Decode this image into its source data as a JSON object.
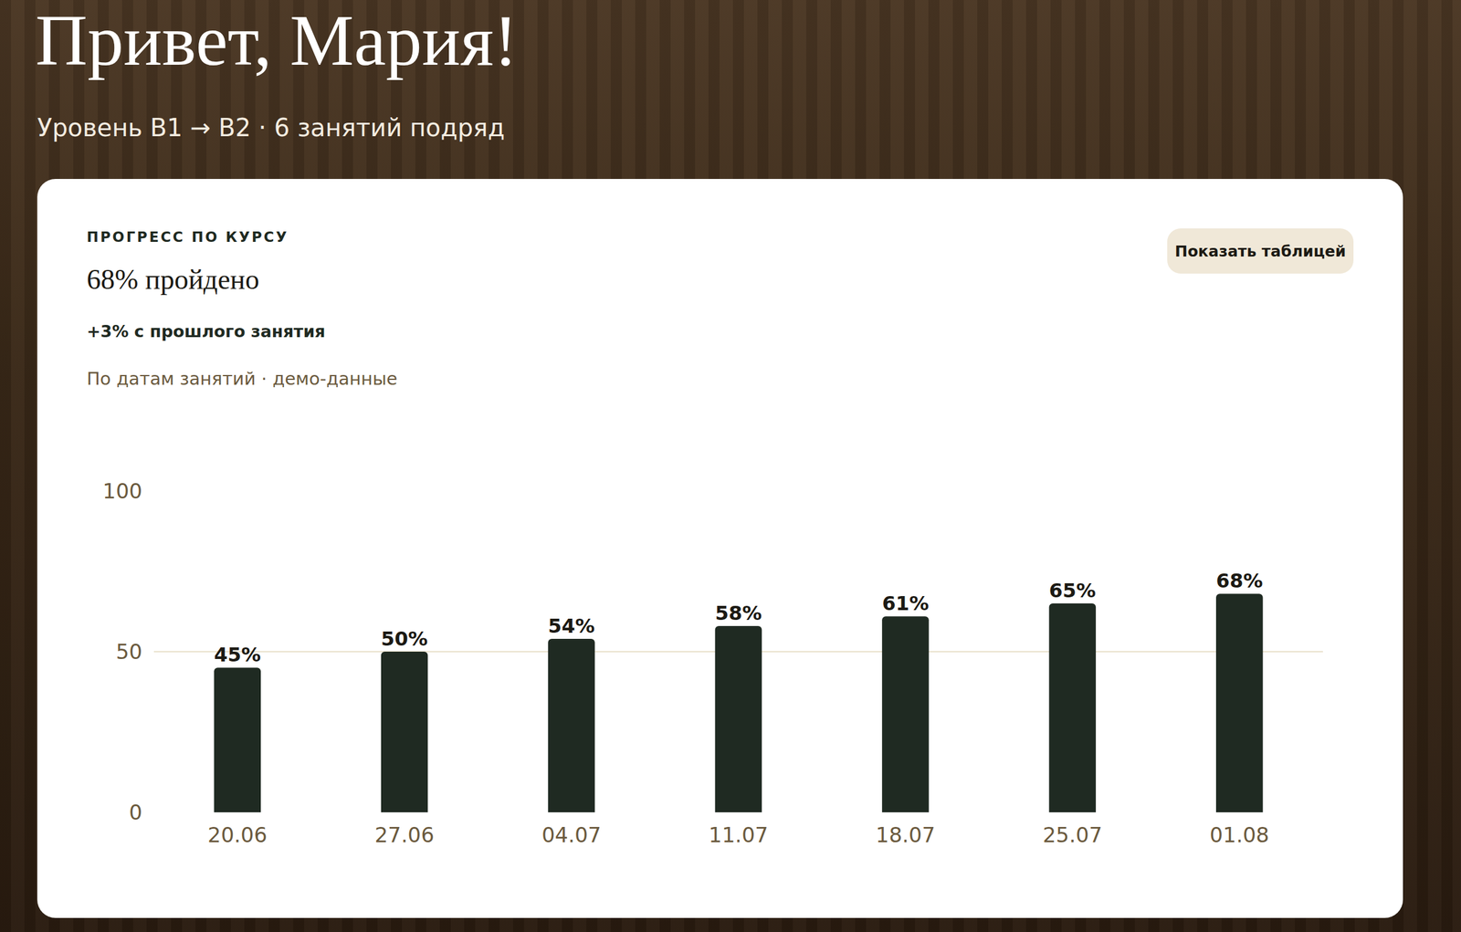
{
  "header": {
    "greeting": "Привет, Мария!",
    "subtitle": "Уровень B1 → B2 · 6 занятий подряд"
  },
  "card": {
    "label": "ПРОГРЕСС ПО КУРСУ",
    "headline": "68% пройдено",
    "delta": "+3% с прошлого занятия",
    "note": "По датам занятий · демо-данные",
    "button": "Показать таблицей"
  },
  "chart_data": {
    "type": "bar",
    "categories": [
      "20.06",
      "27.06",
      "04.07",
      "11.07",
      "18.07",
      "25.07",
      "01.08"
    ],
    "values": [
      45,
      50,
      54,
      58,
      61,
      65,
      68
    ],
    "value_labels": [
      "45%",
      "50%",
      "54%",
      "58%",
      "61%",
      "65%",
      "68%"
    ],
    "data_labels": true,
    "color": "#1f2a22",
    "ylim": [
      0,
      100
    ],
    "yticks": [
      0,
      50,
      100
    ],
    "grid": true
  }
}
